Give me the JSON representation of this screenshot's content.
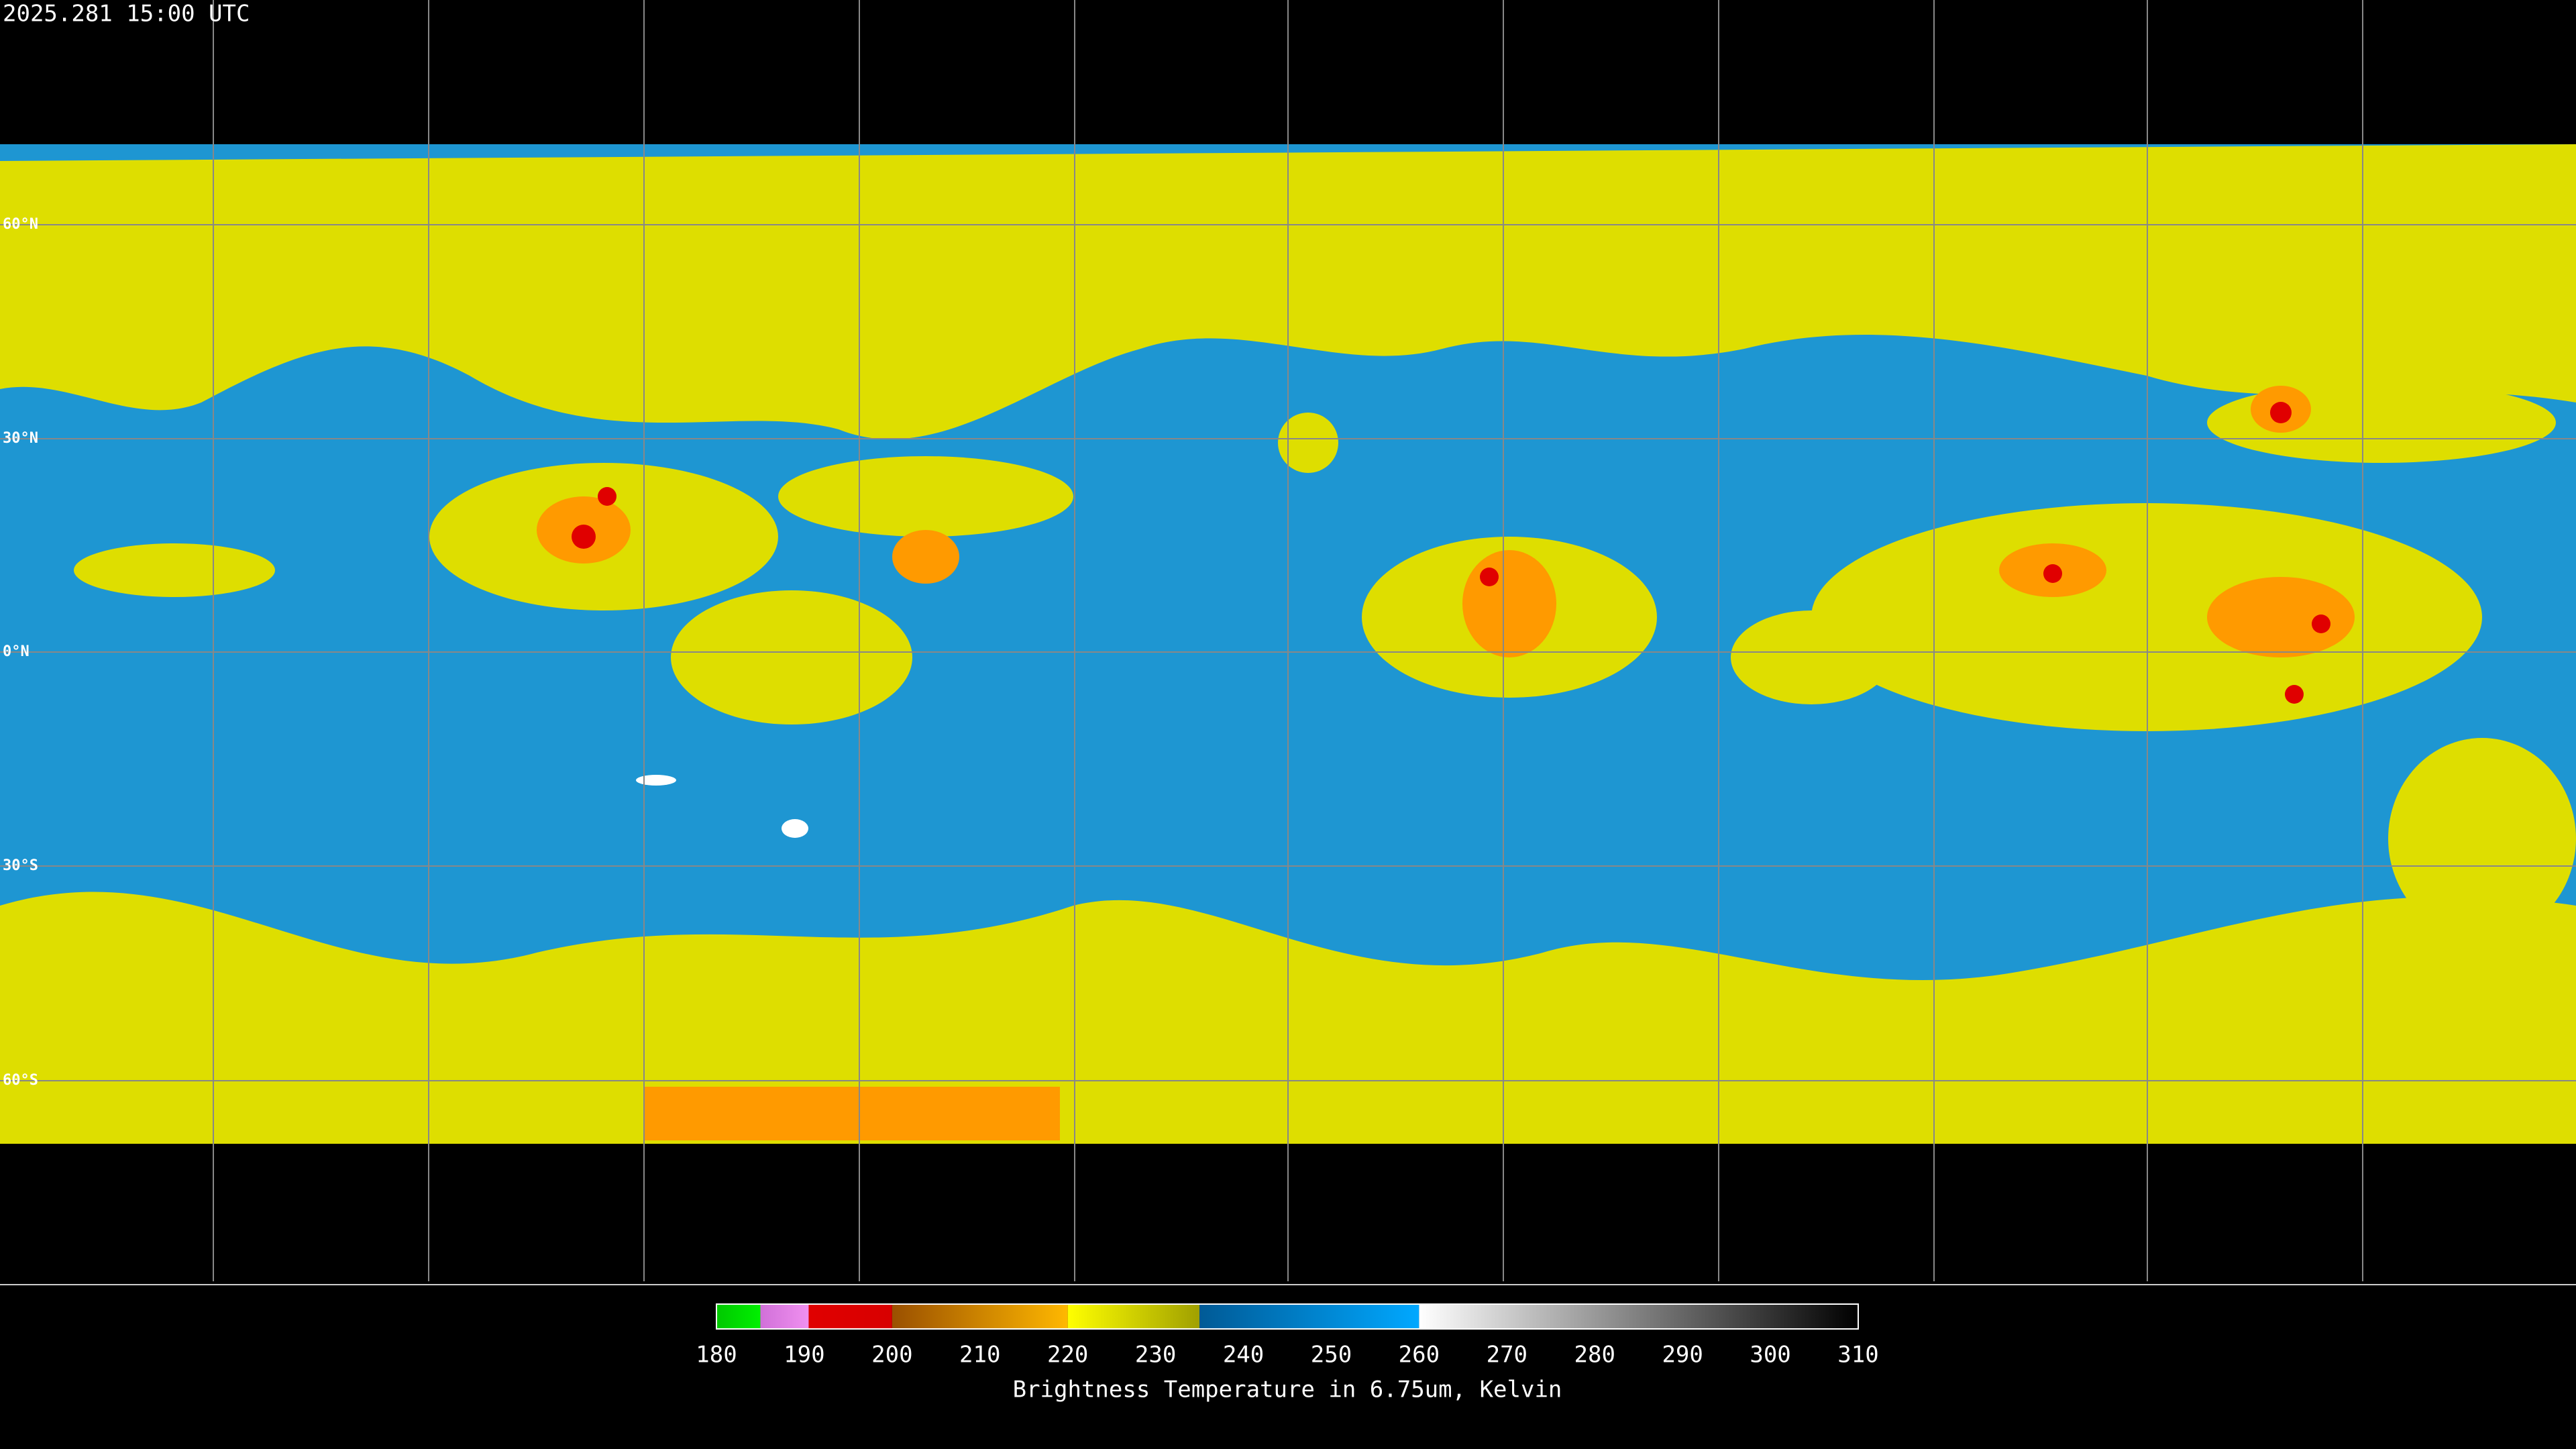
{
  "header": {
    "timestamp": "2025.281 15:00 UTC"
  },
  "map": {
    "latitude_labels": [
      "60°N",
      "30°N",
      "0°N",
      "30°S",
      "60°S"
    ]
  },
  "colorbar": {
    "lim": [
      180,
      310
    ],
    "ticks": [
      180,
      190,
      200,
      210,
      220,
      230,
      240,
      250,
      260,
      270,
      280,
      290,
      300,
      310
    ],
    "title": "Brightness Temperature in 6.75um, Kelvin",
    "segments": [
      {
        "from": 180,
        "to": 185,
        "colors": [
          "#00c800",
          "#00f000"
        ]
      },
      {
        "from": 185,
        "to": 190.5,
        "colors": [
          "#d070d8",
          "#f090f0"
        ]
      },
      {
        "from": 190.5,
        "to": 200,
        "colors": [
          "#e00000",
          "#d80000"
        ]
      },
      {
        "from": 200,
        "to": 220,
        "colors": [
          "#9a5000",
          "#ffb800"
        ]
      },
      {
        "from": 220,
        "to": 235,
        "colors": [
          "#ffff00",
          "#a0a000"
        ]
      },
      {
        "from": 235,
        "to": 260,
        "colors": [
          "#005a96",
          "#00a8ff"
        ]
      },
      {
        "from": 260,
        "to": 310,
        "colors": [
          "#ffffff",
          "#000000"
        ]
      }
    ]
  }
}
